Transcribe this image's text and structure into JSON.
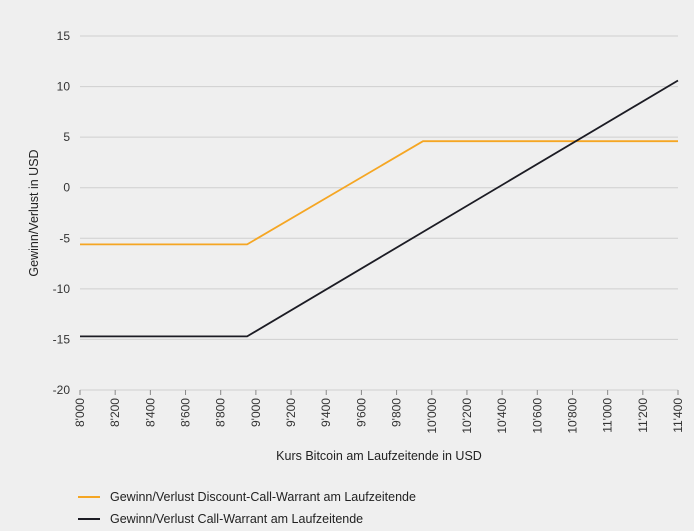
{
  "chart_data": {
    "type": "line",
    "title": "",
    "xlabel": "Kurs Bitcoin am Laufzeitende in USD",
    "ylabel": "Gewinn/Verlust in USD",
    "xlim": [
      8000,
      11400
    ],
    "ylim": [
      -20,
      15
    ],
    "yticks": [
      15,
      10,
      5,
      0,
      -5,
      -10,
      -15,
      -20
    ],
    "ytick_labels": [
      "15",
      "10",
      "5",
      "0",
      "-5",
      "-10",
      "-15",
      "-20"
    ],
    "xticks": [
      8000,
      8200,
      8400,
      8600,
      8800,
      9000,
      9200,
      9400,
      9600,
      9800,
      10000,
      10200,
      10400,
      10600,
      10800,
      11000,
      11200,
      11400
    ],
    "xtick_labels": [
      "8'000",
      "8'200",
      "8'400",
      "8'600",
      "8'800",
      "9'000",
      "9'200",
      "9'400",
      "9'600",
      "9'800",
      "10'000",
      "10'200",
      "10'400",
      "10'600",
      "10'800",
      "11'000",
      "11'200",
      "11'400"
    ],
    "grid": "horizontal",
    "legend_position": "bottom-left",
    "series": [
      {
        "name": "Gewinn/Verlust Discount-Call-Warrant am Laufzeitende",
        "color": "#f5a623",
        "x": [
          8000,
          8950,
          9950,
          11400
        ],
        "y": [
          -5.6,
          -5.6,
          4.6,
          4.6
        ]
      },
      {
        "name": "Gewinn/Verlust Call-Warrant am Laufzeitende",
        "color": "#1c1c24",
        "x": [
          8000,
          8950,
          11400
        ],
        "y": [
          -14.7,
          -14.7,
          10.6
        ]
      }
    ]
  }
}
